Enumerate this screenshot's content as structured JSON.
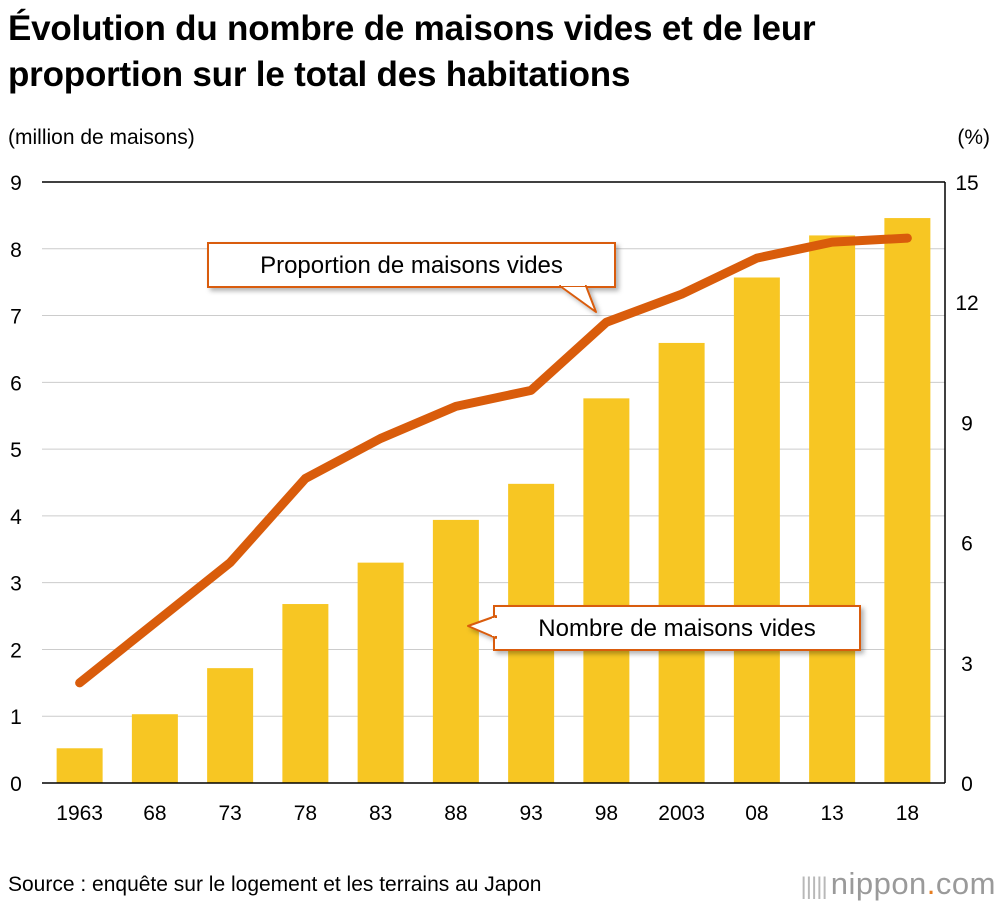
{
  "title": "Évolution du nombre de maisons vides et de leur proportion sur le total des habitations",
  "source": "Source : enquête sur le logement et les terrains au Japon",
  "brand": {
    "name": "nippon",
    "dot": ".",
    "suffix": "com",
    "glyph": "|||||"
  },
  "colors": {
    "bar": "#f7c623",
    "line": "#d95c0b",
    "callout_border": "#d95c0b",
    "grid": "#cccccc"
  },
  "chart_data": {
    "type": "bar+line",
    "categories": [
      "1963",
      "68",
      "73",
      "78",
      "83",
      "88",
      "93",
      "98",
      "2003",
      "08",
      "13",
      "18"
    ],
    "series": [
      {
        "name": "Nombre de maisons vides",
        "type": "bar",
        "axis": "left",
        "values": [
          0.52,
          1.03,
          1.72,
          2.68,
          3.3,
          3.94,
          4.48,
          5.76,
          6.59,
          7.57,
          8.2,
          8.46
        ]
      },
      {
        "name": "Proportion de maisons vides",
        "type": "line",
        "axis": "right",
        "values": [
          2.5,
          4.0,
          5.5,
          7.6,
          8.6,
          9.4,
          9.8,
          11.5,
          12.2,
          13.1,
          13.5,
          13.6
        ]
      }
    ],
    "y_left": {
      "label": "(million de maisons)",
      "min": 0,
      "max": 9,
      "ticks": [
        "0",
        "1",
        "2",
        "3",
        "4",
        "5",
        "6",
        "7",
        "8",
        "9"
      ]
    },
    "y_right": {
      "label": "(%)",
      "min": 0,
      "max": 15,
      "ticks": [
        "0",
        "3",
        "6",
        "9",
        "12",
        "15"
      ]
    },
    "grid": true
  }
}
